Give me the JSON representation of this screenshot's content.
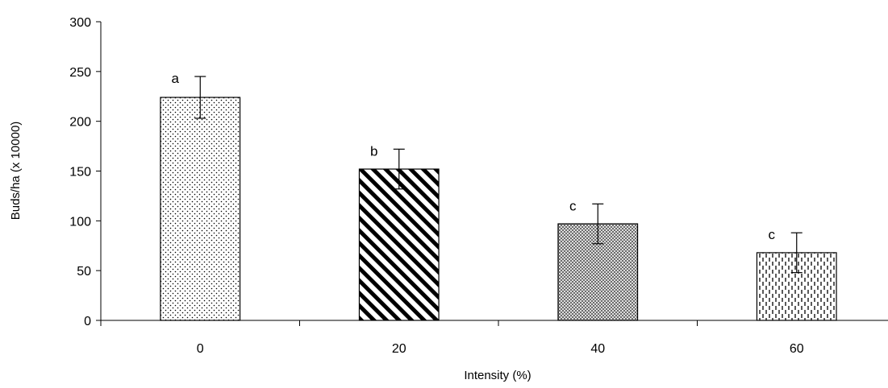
{
  "chart_data": {
    "type": "bar",
    "title": "",
    "xlabel": "Intensity (%)",
    "ylabel": "Buds/ha (x 10000)",
    "categories": [
      "0",
      "20",
      "40",
      "60"
    ],
    "values": [
      224,
      152,
      97,
      68
    ],
    "error_bars": [
      21,
      20,
      20,
      20
    ],
    "significance_labels": [
      "a",
      "b",
      "c",
      "c"
    ],
    "patterns": [
      "dots",
      "diagonal-stripes",
      "crosshatch",
      "dashed-vertical"
    ],
    "ylim": [
      0,
      300
    ],
    "yticks": [
      0,
      50,
      100,
      150,
      200,
      250,
      300
    ],
    "grid": false,
    "legend": "none",
    "colors": {
      "bar_fill": "#ffffff",
      "ink": "#000000"
    }
  }
}
